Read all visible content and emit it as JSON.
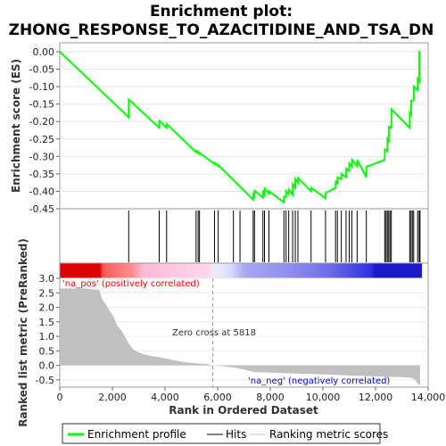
{
  "chart_data": {
    "type": "line",
    "title_line1": "Enrichment plot:",
    "title_line2": "ZHONG_RESPONSE_TO_AZACITIDINE_AND_TSA_DN",
    "xlabel": "Rank in Ordered Dataset",
    "xlim": [
      0,
      14000
    ],
    "x_ticks": [
      "0",
      "2,000",
      "4,000",
      "6,000",
      "8,000",
      "10,000",
      "12,000",
      "14,000"
    ],
    "top_panel": {
      "ylabel": "Enrichment score (ES)",
      "ylim": [
        -0.45,
        0.0
      ],
      "y_ticks": [
        "0.00",
        "-0.05",
        "-0.10",
        "-0.15",
        "-0.20",
        "-0.25",
        "-0.30",
        "-0.35",
        "-0.40",
        "-0.45"
      ],
      "series": [
        {
          "name": "Enrichment profile",
          "color": "#00ff00",
          "x": [
            0,
            2620,
            2625,
            3780,
            3785,
            4060,
            4065,
            5180,
            5185,
            5260,
            5265,
            5310,
            5315,
            5880,
            5885,
            6020,
            6025,
            7350,
            7355,
            7400,
            7405,
            7720,
            7725,
            7780,
            7785,
            7950,
            7955,
            8520,
            8525,
            8600,
            8605,
            8700,
            8705,
            8850,
            8855,
            8950,
            8955,
            9050,
            9055,
            9550,
            9555,
            10100,
            10105,
            10480,
            10485,
            10550,
            10555,
            10700,
            10705,
            10880,
            10885,
            11000,
            11005,
            11100,
            11105,
            11300,
            11305,
            11650,
            11655,
            12350,
            12355,
            12450,
            12455,
            12500,
            12505,
            12600,
            12605,
            13300,
            13305,
            13350,
            13355,
            13450,
            13455,
            13600,
            13605,
            13660,
            13665,
            13690
          ],
          "y": [
            0.0,
            -0.188,
            -0.137,
            -0.218,
            -0.198,
            -0.218,
            -0.207,
            -0.288,
            -0.285,
            -0.29,
            -0.287,
            -0.292,
            -0.29,
            -0.322,
            -0.318,
            -0.328,
            -0.325,
            -0.424,
            -0.41,
            -0.416,
            -0.398,
            -0.418,
            -0.403,
            -0.41,
            -0.392,
            -0.407,
            -0.4,
            -0.432,
            -0.415,
            -0.416,
            -0.4,
            -0.408,
            -0.395,
            -0.41,
            -0.38,
            -0.39,
            -0.365,
            -0.375,
            -0.362,
            -0.4,
            -0.39,
            -0.42,
            -0.405,
            -0.39,
            -0.37,
            -0.38,
            -0.36,
            -0.365,
            -0.35,
            -0.36,
            -0.335,
            -0.342,
            -0.32,
            -0.33,
            -0.31,
            -0.328,
            -0.31,
            -0.36,
            -0.33,
            -0.31,
            -0.28,
            -0.285,
            -0.25,
            -0.255,
            -0.215,
            -0.218,
            -0.165,
            -0.218,
            -0.175,
            -0.18,
            -0.14,
            -0.14,
            -0.1,
            -0.11,
            -0.078,
            -0.085,
            0.0,
            0.0
          ]
        }
      ]
    },
    "hits_panel": {
      "hit_ranks": [
        2620,
        3780,
        4060,
        5180,
        5260,
        5310,
        5880,
        6020,
        6600,
        6850,
        7350,
        7400,
        7720,
        7780,
        7950,
        8520,
        8600,
        8700,
        8850,
        8950,
        9050,
        9550,
        10100,
        10480,
        10550,
        10700,
        10880,
        11000,
        11100,
        11300,
        11650,
        12350,
        12400,
        12450,
        12500,
        12550,
        12600,
        13300,
        13350,
        13400,
        13450,
        13600,
        13660,
        13690
      ]
    },
    "bottom_panel": {
      "ylabel": "Ranked list metric (PreRanked)",
      "ylim": [
        -0.75,
        3.0
      ],
      "y_ticks": [
        "3.0",
        "2.5",
        "2.0",
        "1.5",
        "1.0",
        "0.5",
        "0.0",
        "-0.5"
      ],
      "metric_x": [
        0,
        500,
        1000,
        1500,
        1600,
        1750,
        1850,
        2000,
        2100,
        2200,
        2350,
        2500,
        2650,
        2800,
        3000,
        3200,
        3500,
        3800,
        4100,
        4400,
        4700,
        5000,
        5300,
        5600,
        5818,
        6100,
        6400,
        6700,
        7000,
        7200,
        7400,
        8000,
        9000,
        10000,
        10500,
        11000,
        12000,
        13000,
        13400,
        13500,
        13600,
        13690
      ],
      "metric_values": [
        2.65,
        2.65,
        2.65,
        2.6,
        2.3,
        2.1,
        1.95,
        1.75,
        1.55,
        1.35,
        1.2,
        0.95,
        0.72,
        0.55,
        0.45,
        0.38,
        0.32,
        0.28,
        0.22,
        0.17,
        0.12,
        0.09,
        0.06,
        0.04,
        0.0,
        -0.02,
        -0.05,
        -0.09,
        -0.14,
        -0.19,
        -0.23,
        -0.25,
        -0.28,
        -0.31,
        -0.33,
        -0.35,
        -0.38,
        -0.41,
        -0.43,
        -0.5,
        -0.62,
        -0.7
      ],
      "fill_color": "#c0c0c0",
      "zero_cross_label": "Zero cross at 5818",
      "zero_cross": 5818,
      "pos_label": "'na_pos' (positively correlated)",
      "neg_label": "'na_neg' (negatively correlated)",
      "pos_color": "#ff0000",
      "neg_color": "#0000ff"
    },
    "legend": [
      {
        "label": "Enrichment profile",
        "color": "#00ff00"
      },
      {
        "label": "Hits",
        "color": "#000000"
      },
      {
        "label": "Ranking metric scores",
        "color": "#c0c0c0"
      }
    ]
  }
}
